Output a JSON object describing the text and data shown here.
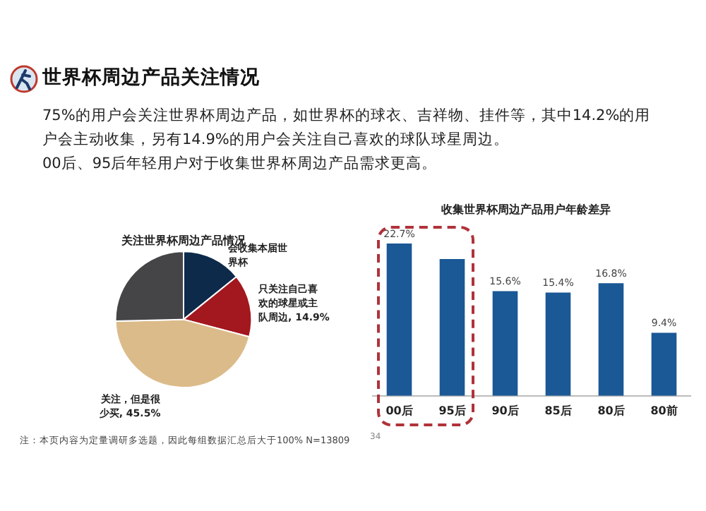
{
  "chart_data": [
    {
      "type": "other",
      "title": "世界杯周边产品关注情况",
      "annotations": [
        "75%的用户会关注世界杯周边产品，如世界杯的球衣、吉祥物、挂件等，其中14.2%的用户会主动收集，另有14.9%的用户会关注自己喜欢的球队球星周边。",
        "00后、95后年轻用户对于收集世界杯周边产品需求更高。"
      ]
    },
    {
      "type": "pie",
      "title": "关注世界杯周边产品情况",
      "categories": [
        "会收集本届世界杯",
        "只关注自己喜欢的球星或主队周边",
        "关注，但是很少买",
        null
      ],
      "values": [
        14.2,
        14.9,
        45.5,
        25.4
      ],
      "colors": [
        "#0d2a4a",
        "#a3171f",
        "#dcbb8a",
        "#454547"
      ],
      "value_labels": [
        null,
        "14.9%",
        "45.5%",
        null
      ],
      "annotations": [
        "注：本页内容为定量调研多选题，因此每组数据汇总后大于100% N=13809"
      ]
    },
    {
      "type": "bar",
      "title": "收集世界杯周边产品用户年龄差异",
      "categories": [
        "00后",
        "95后",
        "90后",
        "85后",
        "80后",
        "80前"
      ],
      "values": [
        22.7,
        20.4,
        15.6,
        15.4,
        16.8,
        9.4
      ],
      "color": "#1b5896",
      "value_labels": [
        "22.7%",
        null,
        "15.6%",
        "15.4%",
        "16.8%",
        "9.4%"
      ],
      "annotations": [
        "34"
      ]
    }
  ]
}
